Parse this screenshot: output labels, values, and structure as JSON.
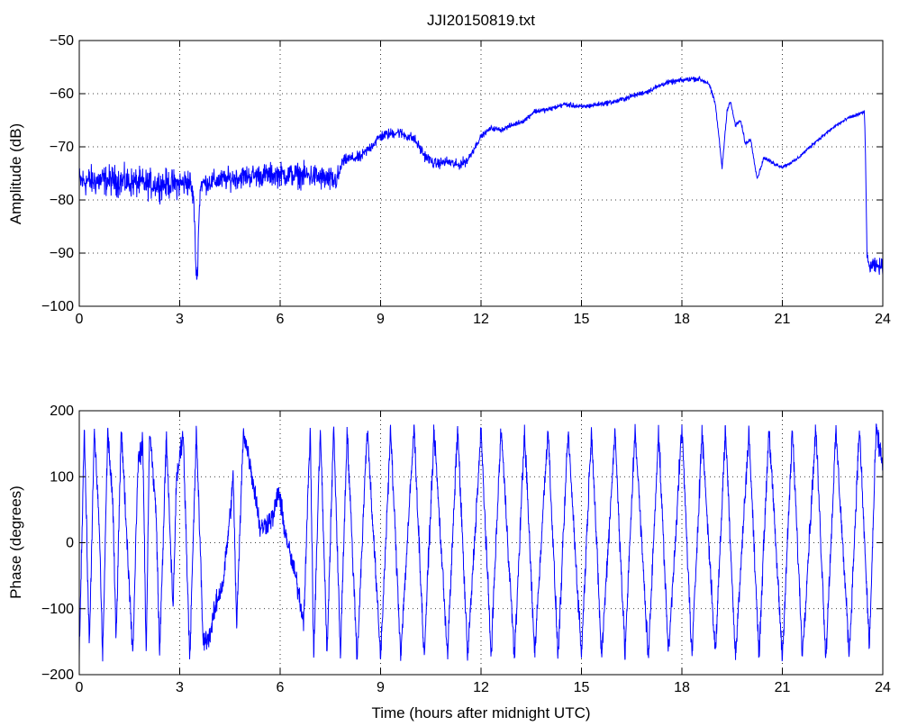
{
  "figure": {
    "title": "JJI20150819.txt",
    "colors": {
      "line": "#0000ff",
      "axes": "#000000",
      "grid": "#000000",
      "background": "#ffffff"
    }
  },
  "chart_data": [
    {
      "type": "line",
      "title": "JJI20150819.txt",
      "xlabel": "",
      "ylabel": "Amplitude (dB)",
      "xlim": [
        0,
        24
      ],
      "ylim": [
        -100,
        -50
      ],
      "x_ticks": [
        0,
        3,
        6,
        9,
        12,
        15,
        18,
        21,
        24
      ],
      "y_ticks": [
        -50,
        -60,
        -70,
        -80,
        -90,
        -100
      ],
      "x_tick_labels": [
        "0",
        "3",
        "6",
        "9",
        "12",
        "15",
        "18",
        "21",
        "24"
      ],
      "y_tick_labels": [
        "−50",
        "−60",
        "−70",
        "−80",
        "−90",
        "−100"
      ],
      "grid": "dotted",
      "series": [
        {
          "color": "#0000ff",
          "noise": [
            [
              0,
              2.4
            ],
            [
              3.3,
              2.2
            ],
            [
              3.4,
              1.6
            ],
            [
              7.7,
              2.0
            ],
            [
              7.8,
              0.9
            ],
            [
              11.5,
              0.8
            ],
            [
              12,
              0.4
            ],
            [
              18.9,
              0.4
            ],
            [
              19.1,
              0.3
            ],
            [
              23.5,
              0.25
            ],
            [
              23.6,
              1.2
            ],
            [
              24,
              1.2
            ]
          ],
          "points": [
            [
              0,
              -76.5
            ],
            [
              1,
              -76.3
            ],
            [
              2,
              -77
            ],
            [
              3,
              -77
            ],
            [
              3.3,
              -76.5
            ],
            [
              3.42,
              -80
            ],
            [
              3.48,
              -92
            ],
            [
              3.52,
              -95.5
            ],
            [
              3.56,
              -86
            ],
            [
              3.62,
              -77
            ],
            [
              4,
              -76.5
            ],
            [
              5,
              -75.5
            ],
            [
              6,
              -75.2
            ],
            [
              7,
              -75.5
            ],
            [
              7.6,
              -76.5
            ],
            [
              7.75,
              -75.5
            ],
            [
              7.85,
              -73
            ],
            [
              8,
              -72.3
            ],
            [
              8.4,
              -72
            ],
            [
              8.7,
              -70
            ],
            [
              9,
              -68
            ],
            [
              9.5,
              -67.2
            ],
            [
              10,
              -68.5
            ],
            [
              10.3,
              -71.5
            ],
            [
              10.6,
              -73.2
            ],
            [
              11,
              -72.8
            ],
            [
              11.3,
              -73.5
            ],
            [
              11.6,
              -72.5
            ],
            [
              12,
              -68
            ],
            [
              12.3,
              -66.5
            ],
            [
              12.6,
              -66.8
            ],
            [
              12.9,
              -66
            ],
            [
              13.3,
              -65
            ],
            [
              13.6,
              -63.3
            ],
            [
              14,
              -63
            ],
            [
              14.5,
              -62
            ],
            [
              15,
              -62.5
            ],
            [
              15.5,
              -62
            ],
            [
              16,
              -61.5
            ],
            [
              16.5,
              -60.5
            ],
            [
              17,
              -59.5
            ],
            [
              17.5,
              -58
            ],
            [
              18,
              -57.5
            ],
            [
              18.3,
              -57.2
            ],
            [
              18.5,
              -57.2
            ],
            [
              18.8,
              -58
            ],
            [
              19,
              -62
            ],
            [
              19.12,
              -69
            ],
            [
              19.2,
              -74
            ],
            [
              19.35,
              -63
            ],
            [
              19.45,
              -61.5
            ],
            [
              19.6,
              -66
            ],
            [
              19.75,
              -65
            ],
            [
              19.9,
              -69.5
            ],
            [
              20.05,
              -68.5
            ],
            [
              20.25,
              -76
            ],
            [
              20.45,
              -72
            ],
            [
              20.7,
              -73
            ],
            [
              21,
              -73.8
            ],
            [
              21.4,
              -72.5
            ],
            [
              22,
              -69
            ],
            [
              22.6,
              -66
            ],
            [
              23,
              -64.5
            ],
            [
              23.4,
              -63.6
            ],
            [
              23.45,
              -63.3
            ],
            [
              23.48,
              -70
            ],
            [
              23.53,
              -91
            ],
            [
              23.6,
              -92.5
            ],
            [
              24,
              -92.5
            ]
          ]
        }
      ]
    },
    {
      "type": "line",
      "title": "",
      "xlabel": "Time (hours after midnight UTC)",
      "ylabel": "Phase (degrees)",
      "xlim": [
        0,
        24
      ],
      "ylim": [
        -200,
        200
      ],
      "x_ticks": [
        0,
        3,
        6,
        9,
        12,
        15,
        18,
        21,
        24
      ],
      "y_ticks": [
        200,
        100,
        0,
        -100,
        -200
      ],
      "x_tick_labels": [
        "0",
        "3",
        "6",
        "9",
        "12",
        "15",
        "18",
        "21",
        "24"
      ],
      "y_tick_labels": [
        "200",
        "100",
        "0",
        "−100",
        "−200"
      ],
      "grid": "dotted",
      "wrap": [
        -180,
        180
      ],
      "series": [
        {
          "color": "#0000ff",
          "description_trend": "wrapped phase in degrees",
          "points": [
            [
              0,
              -170
            ],
            [
              0.15,
              175
            ],
            [
              0.3,
              -160
            ],
            [
              0.45,
              170
            ],
            [
              0.6,
              20
            ],
            [
              0.7,
              -175
            ],
            [
              0.85,
              170
            ],
            [
              1.0,
              60
            ],
            [
              1.1,
              -150
            ],
            [
              1.25,
              175
            ],
            [
              1.4,
              30
            ],
            [
              1.6,
              -170
            ],
            [
              1.75,
              120
            ],
            [
              1.9,
              150
            ],
            [
              2.0,
              -175
            ],
            [
              2.1,
              175
            ],
            [
              2.3,
              40
            ],
            [
              2.4,
              -170
            ],
            [
              2.6,
              160
            ],
            [
              2.8,
              -100
            ],
            [
              2.9,
              90
            ],
            [
              3.1,
              170
            ],
            [
              3.3,
              -175
            ],
            [
              3.5,
              170
            ],
            [
              3.7,
              -150
            ],
            [
              3.9,
              -140
            ],
            [
              4.1,
              -90
            ],
            [
              4.3,
              -60
            ],
            [
              4.5,
              40
            ],
            [
              4.6,
              100
            ],
            [
              4.7,
              -130
            ],
            [
              4.9,
              170
            ],
            [
              5.1,
              120
            ],
            [
              5.3,
              60
            ],
            [
              5.4,
              20
            ],
            [
              5.6,
              30
            ],
            [
              5.8,
              40
            ],
            [
              5.95,
              80
            ],
            [
              6.1,
              30
            ],
            [
              6.3,
              -20
            ],
            [
              6.5,
              -60
            ],
            [
              6.7,
              -120
            ],
            [
              6.9,
              175
            ],
            [
              7.0,
              -175
            ],
            [
              7.2,
              175
            ],
            [
              7.4,
              -170
            ],
            [
              7.6,
              178
            ],
            [
              7.8,
              -170
            ],
            [
              8.0,
              170
            ],
            [
              8.3,
              -175
            ],
            [
              8.6,
              175
            ],
            [
              9.0,
              -175
            ],
            [
              9.3,
              170
            ],
            [
              9.6,
              -170
            ],
            [
              10.0,
              175
            ],
            [
              10.3,
              -175
            ],
            [
              10.6,
              170
            ],
            [
              11.0,
              -170
            ],
            [
              11.3,
              175
            ],
            [
              11.6,
              -175
            ],
            [
              12.0,
              170
            ],
            [
              12.3,
              -170
            ],
            [
              12.6,
              175
            ],
            [
              13.0,
              -175
            ],
            [
              13.3,
              170
            ],
            [
              13.6,
              -170
            ],
            [
              14.0,
              175
            ],
            [
              14.3,
              -175
            ],
            [
              14.6,
              170
            ],
            [
              15.0,
              -170
            ],
            [
              15.3,
              175
            ],
            [
              15.6,
              -175
            ],
            [
              16.0,
              170
            ],
            [
              16.3,
              -170
            ],
            [
              16.6,
              175
            ],
            [
              17.0,
              -175
            ],
            [
              17.3,
              170
            ],
            [
              17.6,
              -170
            ],
            [
              18.0,
              175
            ],
            [
              18.3,
              -175
            ],
            [
              18.6,
              170
            ],
            [
              19.0,
              -170
            ],
            [
              19.3,
              175
            ],
            [
              19.6,
              -175
            ],
            [
              20.0,
              170
            ],
            [
              20.3,
              -170
            ],
            [
              20.6,
              175
            ],
            [
              21.0,
              -175
            ],
            [
              21.3,
              170
            ],
            [
              21.6,
              -170
            ],
            [
              22.0,
              175
            ],
            [
              22.3,
              -175
            ],
            [
              22.6,
              170
            ],
            [
              23.0,
              -170
            ],
            [
              23.3,
              175
            ],
            [
              23.6,
              -160
            ],
            [
              23.8,
              170
            ],
            [
              24,
              120
            ]
          ]
        }
      ]
    }
  ]
}
